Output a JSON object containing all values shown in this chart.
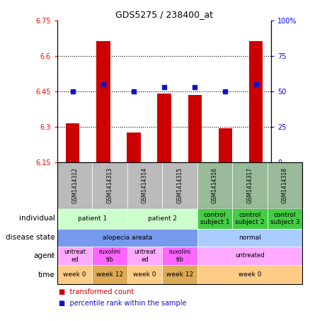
{
  "title": "GDS5275 / 238400_at",
  "samples": [
    "GSM1414312",
    "GSM1414313",
    "GSM1414314",
    "GSM1414315",
    "GSM1414316",
    "GSM1414317",
    "GSM1414318"
  ],
  "bar_values": [
    6.315,
    6.665,
    6.275,
    6.44,
    6.435,
    6.295,
    6.665
  ],
  "dot_values": [
    50,
    55,
    50,
    53,
    53,
    50,
    55
  ],
  "ylim_left": [
    6.15,
    6.75
  ],
  "ylim_right": [
    0,
    100
  ],
  "yticks_left": [
    6.15,
    6.3,
    6.45,
    6.6,
    6.75
  ],
  "yticks_right": [
    0,
    25,
    50,
    75,
    100
  ],
  "ytick_labels_right": [
    "0",
    "25",
    "50",
    "75",
    "100%"
  ],
  "hlines": [
    6.3,
    6.45,
    6.6
  ],
  "bar_color": "#cc0000",
  "dot_color": "#1111cc",
  "bar_width": 0.45,
  "sample_bg_colors_alopecia": "#bbbbbb",
  "sample_bg_colors_normal": "#99bb99",
  "row_labels": [
    "individual",
    "disease state",
    "agent",
    "time"
  ],
  "n_alopecia_cols": 4,
  "individual_groups": [
    {
      "label": "patient 1",
      "cols": [
        0,
        1
      ],
      "color": "#ccffcc"
    },
    {
      "label": "patient 2",
      "cols": [
        2,
        3
      ],
      "color": "#ccffcc"
    },
    {
      "label": "control\nsubject 1",
      "cols": [
        4
      ],
      "color": "#44cc44"
    },
    {
      "label": "control\nsubject 2",
      "cols": [
        5
      ],
      "color": "#44cc44"
    },
    {
      "label": "control\nsubject 3",
      "cols": [
        6
      ],
      "color": "#44cc44"
    }
  ],
  "disease_groups": [
    {
      "label": "alopecia areata",
      "cols": [
        0,
        1,
        2,
        3
      ],
      "color": "#7799ee"
    },
    {
      "label": "normal",
      "cols": [
        4,
        5,
        6
      ],
      "color": "#aaccff"
    }
  ],
  "agent_groups": [
    {
      "label": "untreat\ned",
      "cols": [
        0
      ],
      "color": "#ffaaff"
    },
    {
      "label": "ruxolini\ntib",
      "cols": [
        1
      ],
      "color": "#ff66ff"
    },
    {
      "label": "untreat\ned",
      "cols": [
        2
      ],
      "color": "#ffaaff"
    },
    {
      "label": "ruxolini\ntib",
      "cols": [
        3
      ],
      "color": "#ff66ff"
    },
    {
      "label": "untreated",
      "cols": [
        4,
        5,
        6
      ],
      "color": "#ffaaff"
    }
  ],
  "time_groups": [
    {
      "label": "week 0",
      "cols": [
        0
      ],
      "color": "#ffcc88"
    },
    {
      "label": "week 12",
      "cols": [
        1
      ],
      "color": "#ddaa55"
    },
    {
      "label": "week 0",
      "cols": [
        2
      ],
      "color": "#ffcc88"
    },
    {
      "label": "week 12",
      "cols": [
        3
      ],
      "color": "#ddaa55"
    },
    {
      "label": "week 0",
      "cols": [
        4,
        5,
        6
      ],
      "color": "#ffcc88"
    }
  ]
}
